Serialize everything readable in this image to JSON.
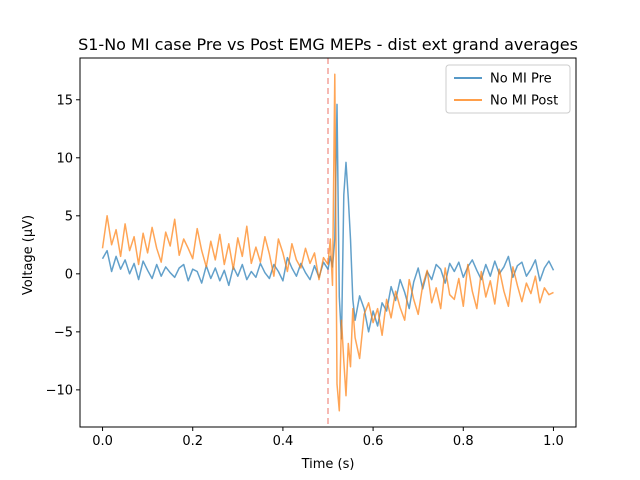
{
  "chart_data": {
    "type": "line",
    "title": "S1-No MI case Pre vs Post EMG MEPs - dist ext grand averages",
    "xlabel": "Time (s)",
    "ylabel": "Voltage (μV)",
    "xlim": [
      -0.05,
      1.05
    ],
    "ylim": [
      -13.2,
      18.6
    ],
    "xticks": [
      0.0,
      0.2,
      0.4,
      0.6,
      0.8,
      1.0
    ],
    "xtick_labels": [
      "0.0",
      "0.2",
      "0.4",
      "0.6",
      "0.8",
      "1.0"
    ],
    "yticks": [
      -10,
      -5,
      0,
      5,
      10,
      15
    ],
    "ytick_labels": [
      "−10",
      "−5",
      "0",
      "5",
      "10",
      "15"
    ],
    "grid": false,
    "legend_position": "top-right",
    "vline": {
      "x": 0.5,
      "color": "#f4a29a",
      "style": "dashed"
    },
    "series": [
      {
        "name": "No MI Pre",
        "color": "#1f77b4",
        "x": [
          0.0,
          0.01,
          0.02,
          0.03,
          0.04,
          0.05,
          0.06,
          0.07,
          0.08,
          0.09,
          0.1,
          0.11,
          0.12,
          0.13,
          0.14,
          0.15,
          0.16,
          0.17,
          0.18,
          0.19,
          0.2,
          0.21,
          0.22,
          0.23,
          0.24,
          0.25,
          0.26,
          0.27,
          0.28,
          0.29,
          0.3,
          0.31,
          0.32,
          0.33,
          0.34,
          0.35,
          0.36,
          0.37,
          0.38,
          0.39,
          0.4,
          0.41,
          0.42,
          0.43,
          0.44,
          0.45,
          0.46,
          0.47,
          0.48,
          0.49,
          0.5,
          0.505,
          0.51,
          0.515,
          0.52,
          0.525,
          0.53,
          0.535,
          0.54,
          0.545,
          0.55,
          0.555,
          0.56,
          0.57,
          0.58,
          0.59,
          0.6,
          0.61,
          0.62,
          0.63,
          0.64,
          0.65,
          0.66,
          0.67,
          0.68,
          0.69,
          0.7,
          0.71,
          0.72,
          0.73,
          0.74,
          0.75,
          0.76,
          0.77,
          0.78,
          0.79,
          0.8,
          0.81,
          0.82,
          0.83,
          0.84,
          0.85,
          0.86,
          0.87,
          0.88,
          0.89,
          0.9,
          0.91,
          0.92,
          0.93,
          0.94,
          0.95,
          0.96,
          0.97,
          0.98,
          0.99,
          1.0
        ],
        "values": [
          1.3,
          2.0,
          0.2,
          1.5,
          0.4,
          1.2,
          0.0,
          0.9,
          -0.5,
          1.1,
          0.3,
          -0.4,
          0.8,
          -0.2,
          0.6,
          0.1,
          -0.3,
          0.5,
          0.8,
          -0.6,
          0.4,
          0.2,
          -0.8,
          0.7,
          -0.4,
          0.5,
          -0.6,
          0.3,
          -1.0,
          0.6,
          -0.2,
          0.8,
          -0.5,
          0.2,
          -0.3,
          0.9,
          0.1,
          -0.4,
          0.8,
          0.2,
          -0.6,
          1.4,
          0.5,
          -0.2,
          0.9,
          0.1,
          -0.5,
          0.7,
          -0.3,
          1.0,
          0.4,
          1.5,
          0.6,
          3.0,
          14.6,
          -2.0,
          -5.6,
          6.8,
          9.6,
          6.5,
          3.0,
          -2.2,
          -4.0,
          -1.9,
          -3.0,
          -5.0,
          -3.2,
          -4.5,
          -2.5,
          -3.2,
          -1.1,
          -2.3,
          -0.5,
          -1.6,
          -3.0,
          -0.7,
          0.5,
          -1.3,
          0.2,
          -0.5,
          0.8,
          0.4,
          -0.8,
          0.9,
          0.2,
          1.0,
          -0.3,
          0.6,
          1.2,
          0.3,
          -0.5,
          0.8,
          -0.2,
          1.1,
          0.0,
          0.6,
          1.5,
          -0.3,
          0.7,
          1.0,
          -0.2,
          0.4,
          1.2,
          -0.6,
          0.5,
          1.1,
          0.3
        ]
      },
      {
        "name": "No MI Post",
        "color": "#ff7f0e",
        "x": [
          0.0,
          0.01,
          0.02,
          0.03,
          0.04,
          0.05,
          0.06,
          0.07,
          0.08,
          0.09,
          0.1,
          0.11,
          0.12,
          0.13,
          0.14,
          0.15,
          0.16,
          0.17,
          0.18,
          0.19,
          0.2,
          0.21,
          0.22,
          0.23,
          0.24,
          0.25,
          0.26,
          0.27,
          0.28,
          0.29,
          0.3,
          0.31,
          0.32,
          0.33,
          0.34,
          0.35,
          0.36,
          0.37,
          0.38,
          0.39,
          0.4,
          0.41,
          0.42,
          0.43,
          0.44,
          0.45,
          0.46,
          0.47,
          0.48,
          0.49,
          0.5,
          0.505,
          0.51,
          0.515,
          0.52,
          0.525,
          0.53,
          0.535,
          0.54,
          0.545,
          0.55,
          0.555,
          0.56,
          0.57,
          0.58,
          0.59,
          0.6,
          0.61,
          0.62,
          0.63,
          0.64,
          0.65,
          0.66,
          0.67,
          0.68,
          0.69,
          0.7,
          0.71,
          0.72,
          0.73,
          0.74,
          0.75,
          0.76,
          0.77,
          0.78,
          0.79,
          0.8,
          0.81,
          0.82,
          0.83,
          0.84,
          0.85,
          0.86,
          0.87,
          0.88,
          0.89,
          0.9,
          0.91,
          0.92,
          0.93,
          0.94,
          0.95,
          0.96,
          0.97,
          0.98,
          0.99,
          1.0
        ],
        "values": [
          2.2,
          5.0,
          2.5,
          3.8,
          1.5,
          4.3,
          2.0,
          3.2,
          0.8,
          3.5,
          1.8,
          4.0,
          2.2,
          1.0,
          3.6,
          2.4,
          4.7,
          1.6,
          3.0,
          2.2,
          1.3,
          3.9,
          2.0,
          0.6,
          2.8,
          1.2,
          3.4,
          0.8,
          2.6,
          0.4,
          3.1,
          1.5,
          4.1,
          0.9,
          2.3,
          1.0,
          3.2,
          1.7,
          -0.2,
          3.0,
          1.8,
          0.2,
          2.6,
          1.2,
          0.5,
          2.2,
          0.9,
          1.8,
          -0.5,
          1.4,
          0.8,
          3.0,
          -1.0,
          17.2,
          -9.5,
          -11.8,
          -4.0,
          -7.5,
          -10.5,
          -6.0,
          -8.0,
          -3.0,
          -5.5,
          -7.3,
          -3.5,
          -2.5,
          -4.2,
          -3.0,
          -5.3,
          -2.2,
          -3.8,
          -1.5,
          -2.9,
          -4.0,
          -0.5,
          -2.2,
          -3.5,
          -1.0,
          0.3,
          -2.5,
          -1.2,
          -3.0,
          0.5,
          -1.8,
          -2.2,
          -0.4,
          -2.8,
          0.8,
          -1.5,
          -3.0,
          0.2,
          -2.0,
          -0.6,
          -2.6,
          0.4,
          -1.5,
          -2.8,
          0.6,
          -1.0,
          -2.4,
          -0.8,
          -1.7,
          -0.2,
          -2.5,
          -1.2,
          -1.8,
          -1.6
        ]
      }
    ]
  }
}
